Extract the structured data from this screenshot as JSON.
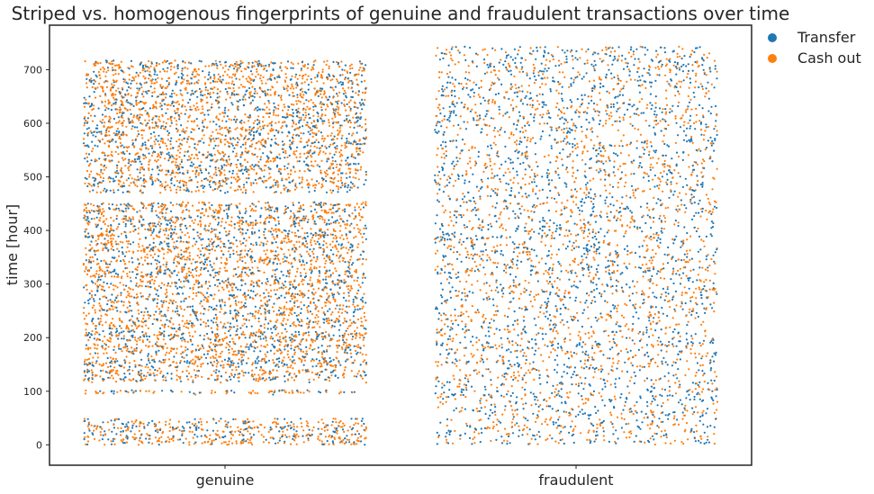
{
  "chart_data": {
    "type": "scatter",
    "title": "Striped vs. homogenous fingerprints of genuine and fraudulent transactions over time",
    "xlabel": "",
    "ylabel": "time [hour]",
    "categories": [
      "genuine",
      "fraudulent"
    ],
    "ylim": [
      -38,
      783
    ],
    "yticks": [
      0,
      100,
      200,
      300,
      400,
      500,
      600,
      700
    ],
    "grid": false,
    "legend_position": "outside-top-right",
    "series": [
      {
        "name": "Transfer",
        "color": "#1f77b4"
      },
      {
        "name": "Cash out",
        "color": "#ff7f0e"
      }
    ],
    "genuine_time_range": [
      0,
      718
    ],
    "fraudulent_time_range": [
      0,
      743
    ],
    "genuine_gaps": [
      [
        49,
        93
      ],
      [
        102,
        116
      ],
      [
        455,
        470
      ]
    ]
  }
}
